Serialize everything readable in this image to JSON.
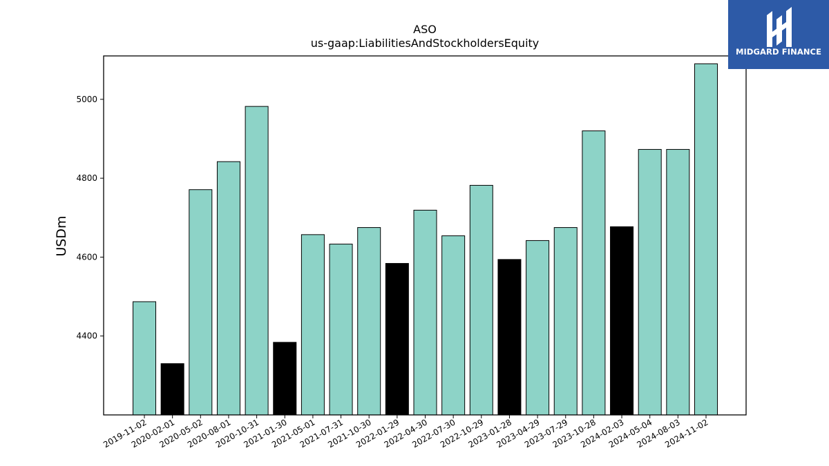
{
  "logo": {
    "text": "MIDGARD FINANCE"
  },
  "colors": {
    "normal": "#8dd3c7",
    "highlight": "#000000",
    "logo_bg": "#2d5aa7"
  },
  "chart_data": {
    "type": "bar",
    "title": "ASO",
    "subtitle": "us-gaap:LiabilitiesAndStockholdersEquity",
    "ylabel": "USDm",
    "xlabel": "",
    "ylim": [
      4200,
      5110
    ],
    "yticks": [
      4400,
      4600,
      4800,
      5000
    ],
    "categories": [
      "2019-11-02",
      "2020-02-01",
      "2020-05-02",
      "2020-08-01",
      "2020-10-31",
      "2021-01-30",
      "2021-05-01",
      "2021-07-31",
      "2021-10-30",
      "2022-01-29",
      "2022-04-30",
      "2022-07-30",
      "2022-10-29",
      "2023-01-28",
      "2023-04-29",
      "2023-07-29",
      "2023-10-28",
      "2024-02-03",
      "2024-05-04",
      "2024-08-03",
      "2024-11-02"
    ],
    "values": [
      4487,
      4330,
      4771,
      4842,
      4982,
      4384,
      4657,
      4633,
      4675,
      4584,
      4719,
      4654,
      4782,
      4594,
      4642,
      4675,
      4920,
      4677,
      4873,
      4873,
      5090
    ],
    "highlight": [
      false,
      true,
      false,
      false,
      false,
      true,
      false,
      false,
      false,
      true,
      false,
      false,
      false,
      true,
      false,
      false,
      false,
      true,
      false,
      false,
      false
    ],
    "grid": false,
    "legend": "none"
  }
}
